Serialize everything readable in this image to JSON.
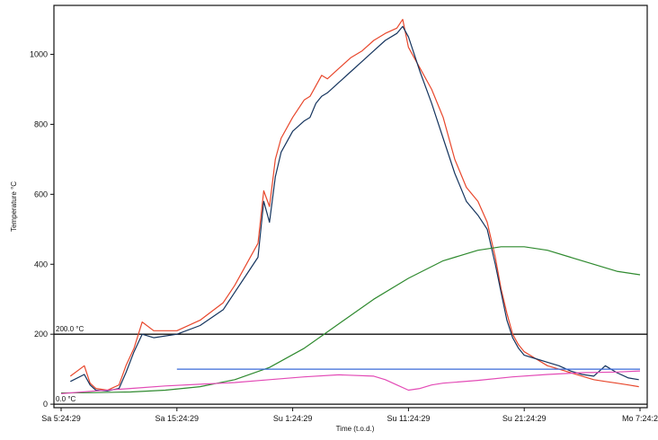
{
  "chart_data": {
    "type": "line",
    "title": "",
    "xlabel": "Time (t.o.d.)",
    "ylabel": "Temperature °C",
    "ylim": [
      -10,
      1140
    ],
    "xlim": [
      0,
      50
    ],
    "x_tick_labels": [
      "Sa 5:24:29",
      "Sa 15:24:29",
      "Su 1:24:29",
      "Su 11:24:29",
      "Su 21:24:29",
      "Mo 7:24:2"
    ],
    "x_tick_values": [
      0,
      10,
      20,
      30,
      40,
      50
    ],
    "y_ticks": [
      0,
      200,
      400,
      600,
      800,
      1000
    ],
    "grid": false,
    "legend": "none",
    "reference_lines": [
      {
        "label": "200.0 °C",
        "y": 200,
        "color": "#111111"
      },
      {
        "label": "0.0 °C",
        "y": 0,
        "color": "#111111"
      }
    ],
    "series": [
      {
        "color": "#e8472c",
        "x": [
          0.8,
          2,
          2.5,
          3,
          4,
          5,
          5.6,
          6.3,
          7,
          8,
          10,
          12,
          14,
          15,
          16,
          17,
          17.5,
          18,
          18.5,
          19,
          20,
          21,
          21.5,
          22,
          22.5,
          23,
          24,
          25,
          26,
          27,
          28,
          29,
          29.5,
          30,
          31,
          32,
          33,
          34,
          35,
          36,
          36.8,
          37.5,
          38,
          38.5,
          39,
          39.5,
          40,
          41,
          42,
          43,
          44,
          45,
          46,
          47,
          48,
          49,
          49.9
        ],
        "y": [
          80,
          110,
          60,
          45,
          40,
          55,
          110,
          160,
          235,
          210,
          210,
          240,
          290,
          340,
          400,
          460,
          610,
          565,
          700,
          760,
          820,
          870,
          880,
          910,
          940,
          930,
          960,
          990,
          1010,
          1040,
          1060,
          1075,
          1100,
          1020,
          960,
          900,
          820,
          700,
          620,
          580,
          520,
          420,
          330,
          260,
          200,
          170,
          150,
          130,
          110,
          100,
          90,
          80,
          70,
          65,
          60,
          55,
          50
        ]
      },
      {
        "color": "#15345e",
        "x": [
          0.8,
          2,
          2.5,
          3,
          4,
          5,
          5.6,
          6.3,
          7,
          8,
          10,
          12,
          14,
          15,
          16,
          17,
          17.5,
          18,
          18.5,
          19,
          20,
          21,
          21.5,
          22,
          22.5,
          23,
          24,
          25,
          26,
          27,
          28,
          29,
          29.5,
          30,
          31,
          32,
          33,
          34,
          35,
          36,
          36.8,
          37.5,
          38,
          38.5,
          39,
          39.5,
          40,
          41,
          42,
          43,
          44,
          45,
          46,
          47,
          48,
          49,
          49.9
        ],
        "y": [
          65,
          85,
          55,
          40,
          38,
          45,
          90,
          150,
          200,
          190,
          200,
          225,
          270,
          320,
          370,
          420,
          580,
          520,
          650,
          720,
          780,
          810,
          820,
          860,
          880,
          890,
          920,
          950,
          980,
          1010,
          1040,
          1060,
          1080,
          1050,
          950,
          860,
          760,
          660,
          580,
          540,
          500,
          400,
          320,
          240,
          190,
          160,
          140,
          130,
          120,
          110,
          95,
          85,
          80,
          110,
          90,
          75,
          70
        ]
      },
      {
        "color": "#2f8a2f",
        "x": [
          0,
          3,
          6,
          9,
          12,
          15,
          18,
          21,
          24,
          27,
          30,
          33,
          36,
          38,
          40,
          42,
          44,
          46,
          48,
          50
        ],
        "y": [
          32,
          33,
          35,
          40,
          50,
          70,
          105,
          160,
          230,
          300,
          360,
          410,
          440,
          450,
          450,
          440,
          420,
          400,
          380,
          370
        ]
      },
      {
        "color": "#e34bb6",
        "x": [
          0,
          3,
          6,
          9,
          12,
          15,
          18,
          21,
          24,
          27,
          28,
          29,
          30,
          31,
          32,
          33,
          36,
          39,
          42,
          45,
          48,
          50
        ],
        "y": [
          30,
          38,
          45,
          52,
          57,
          62,
          70,
          78,
          84,
          80,
          70,
          55,
          40,
          45,
          55,
          60,
          68,
          78,
          85,
          90,
          92,
          95
        ]
      },
      {
        "color": "#3a6ad8",
        "x": [
          10,
          20,
          30,
          40,
          50
        ],
        "y": [
          100,
          100,
          100,
          100,
          100
        ]
      }
    ]
  }
}
